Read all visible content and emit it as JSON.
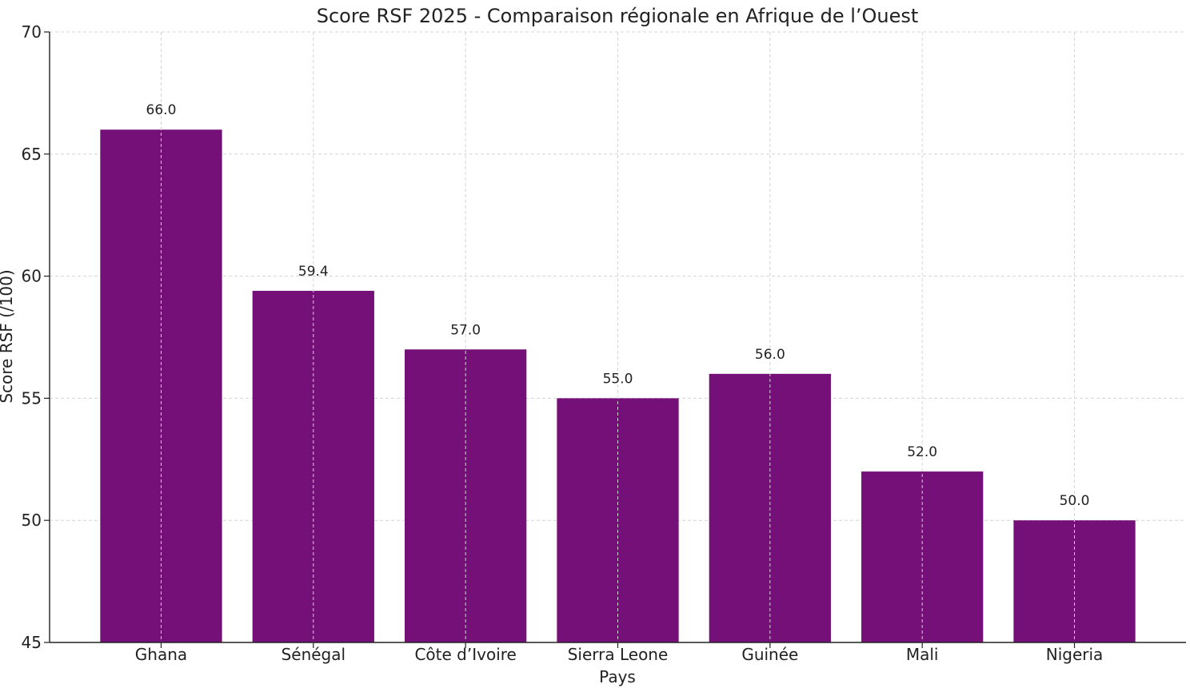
{
  "chart_data": {
    "type": "bar",
    "title": "Score RSF 2025 - Comparaison régionale en Afrique de l’Ouest",
    "xlabel": "Pays",
    "ylabel": "Score RSF (/100)",
    "categories": [
      "Ghana",
      "Sénégal",
      "Côte d’Ivoire",
      "Sierra Leone",
      "Guinée",
      "Mali",
      "Nigeria"
    ],
    "values": [
      66.0,
      59.4,
      57.0,
      55.0,
      56.0,
      52.0,
      50.0
    ],
    "value_labels": [
      "66.0",
      "59.4",
      "57.0",
      "55.0",
      "56.0",
      "52.0",
      "50.0"
    ],
    "ylim": [
      45,
      70
    ],
    "yticks": [
      45,
      50,
      55,
      60,
      65,
      70
    ],
    "ytick_labels": [
      "45",
      "50",
      "55",
      "60",
      "65",
      "70"
    ],
    "grid": true,
    "bar_color": "#741077"
  }
}
